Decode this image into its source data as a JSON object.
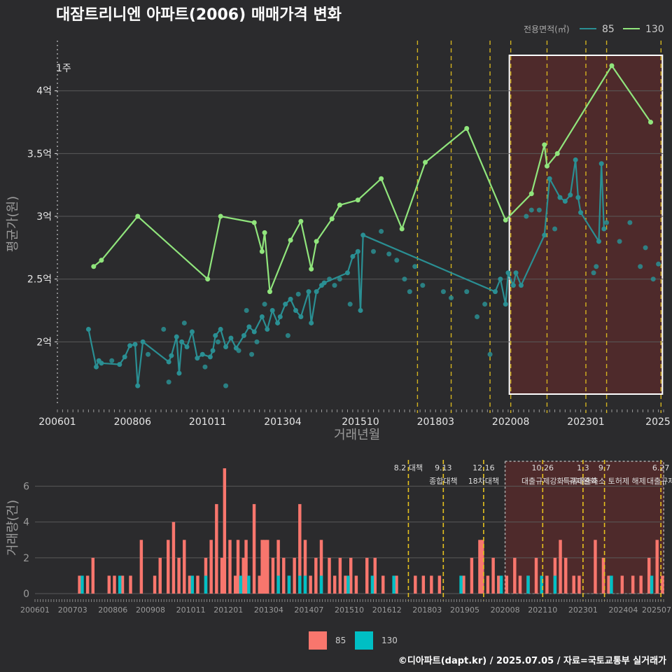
{
  "title": "대잠트리니엔 아파트(2006) 매매가격 변화",
  "source": "©디아파트(dapt.kr) / 2025.07.05 / 자료=국토교통부 실거래가",
  "colors": {
    "s85": "#2a8f93",
    "s130": "#90e57c",
    "bar85": "#f8766d",
    "bar130": "#00bfc4",
    "policy": "#e6c21e",
    "box": "#7b2a2a"
  },
  "chart_data": [
    {
      "type": "line",
      "xlabel": "거래년월",
      "ylabel": "평균가(원)",
      "x_ticks": [
        "200601",
        "200806",
        "201011",
        "201304",
        "201510",
        "201803",
        "202008",
        "202301",
        "2025"
      ],
      "y_ticks": [
        "2억",
        "2.5억",
        "3억",
        "3.5억",
        "4억"
      ],
      "ylim": [
        1.5,
        4.4
      ],
      "xlim": [
        "2006-01",
        "2025-07"
      ],
      "y_unit": "억",
      "legend": {
        "title": "전용면적(㎡)",
        "placement": "top-right",
        "entries": [
          "85",
          "130"
        ]
      },
      "annotation": "1주",
      "highlight_range": [
        "2020-08",
        "2025-06"
      ],
      "policy_lines": [
        "2017-08",
        "2018-09",
        "2019-12",
        "2020-08",
        "2021-10",
        "2023-01",
        "2023-09",
        "2025-06"
      ],
      "series": [
        {
          "name": "85",
          "points": [
            [
              "2007-01",
              2.1
            ],
            [
              "2007-04",
              1.8
            ],
            [
              "2007-05",
              1.85
            ],
            [
              "2007-06",
              1.83
            ],
            [
              "2008-01",
              1.82
            ],
            [
              "2008-03",
              1.88
            ],
            [
              "2008-05",
              1.97
            ],
            [
              "2008-07",
              1.98
            ],
            [
              "2008-08",
              1.65
            ],
            [
              "2008-10",
              2.0
            ],
            [
              "2009-08",
              1.84
            ],
            [
              "2009-09",
              1.89
            ],
            [
              "2009-11",
              2.04
            ],
            [
              "2009-12",
              1.75
            ],
            [
              "2010-01",
              2.0
            ],
            [
              "2010-03",
              1.96
            ],
            [
              "2010-05",
              2.08
            ],
            [
              "2010-07",
              1.87
            ],
            [
              "2010-09",
              1.9
            ],
            [
              "2010-12",
              1.88
            ],
            [
              "2011-01",
              1.93
            ],
            [
              "2011-02",
              2.05
            ],
            [
              "2011-04",
              2.1
            ],
            [
              "2011-06",
              1.96
            ],
            [
              "2011-08",
              2.03
            ],
            [
              "2011-10",
              1.95
            ],
            [
              "2012-01",
              2.05
            ],
            [
              "2012-03",
              2.12
            ],
            [
              "2012-05",
              2.08
            ],
            [
              "2012-08",
              2.2
            ],
            [
              "2012-10",
              2.1
            ],
            [
              "2012-12",
              2.25
            ],
            [
              "2013-02",
              2.15
            ],
            [
              "2013-03",
              2.2
            ],
            [
              "2013-05",
              2.3
            ],
            [
              "2013-07",
              2.34
            ],
            [
              "2013-09",
              2.25
            ],
            [
              "2013-11",
              2.2
            ],
            [
              "2014-02",
              2.4
            ],
            [
              "2014-03",
              2.15
            ],
            [
              "2014-05",
              2.4
            ],
            [
              "2014-07",
              2.45
            ],
            [
              "2014-08",
              2.47
            ],
            [
              "2015-05",
              2.55
            ],
            [
              "2015-07",
              2.68
            ],
            [
              "2015-09",
              2.72
            ],
            [
              "2015-10",
              2.25
            ],
            [
              "2015-11",
              2.85
            ],
            [
              "2020-02",
              2.4
            ],
            [
              "2020-04",
              2.5
            ],
            [
              "2020-06",
              2.3
            ],
            [
              "2020-07",
              2.55
            ],
            [
              "2020-09",
              2.45
            ],
            [
              "2020-10",
              2.55
            ],
            [
              "2020-12",
              2.45
            ],
            [
              "2021-09",
              2.85
            ],
            [
              "2021-11",
              3.3
            ],
            [
              "2022-03",
              3.15
            ],
            [
              "2022-05",
              3.12
            ],
            [
              "2022-07",
              3.17
            ],
            [
              "2022-09",
              3.45
            ],
            [
              "2022-10",
              3.15
            ],
            [
              "2022-11",
              3.03
            ],
            [
              "2023-06",
              2.8
            ],
            [
              "2023-07",
              3.42
            ],
            [
              "2023-08",
              2.9
            ]
          ],
          "scatter": [
            [
              "2007-10",
              1.85
            ],
            [
              "2008-12",
              1.9
            ],
            [
              "2009-06",
              2.1
            ],
            [
              "2009-08",
              1.68
            ],
            [
              "2010-02",
              2.15
            ],
            [
              "2010-10",
              1.8
            ],
            [
              "2011-03",
              2.0
            ],
            [
              "2011-06",
              1.65
            ],
            [
              "2011-11",
              1.93
            ],
            [
              "2012-02",
              2.25
            ],
            [
              "2012-04",
              1.9
            ],
            [
              "2012-06",
              2.0
            ],
            [
              "2012-09",
              2.3
            ],
            [
              "2013-06",
              2.05
            ],
            [
              "2013-10",
              2.38
            ],
            [
              "2014-10",
              2.5
            ],
            [
              "2014-12",
              2.45
            ],
            [
              "2015-02",
              2.5
            ],
            [
              "2015-06",
              2.3
            ],
            [
              "2016-03",
              2.72
            ],
            [
              "2016-06",
              2.88
            ],
            [
              "2016-09",
              2.7
            ],
            [
              "2016-12",
              2.65
            ],
            [
              "2017-03",
              2.5
            ],
            [
              "2017-05",
              2.4
            ],
            [
              "2017-07",
              2.6
            ],
            [
              "2017-10",
              2.45
            ],
            [
              "2018-06",
              2.4
            ],
            [
              "2018-09",
              2.35
            ],
            [
              "2019-03",
              2.4
            ],
            [
              "2019-07",
              2.2
            ],
            [
              "2019-10",
              2.3
            ],
            [
              "2019-12",
              1.9
            ],
            [
              "2021-02",
              3.0
            ],
            [
              "2021-04",
              3.05
            ],
            [
              "2021-07",
              3.05
            ],
            [
              "2022-01",
              2.9
            ],
            [
              "2023-04",
              2.55
            ],
            [
              "2023-05",
              2.6
            ],
            [
              "2023-09",
              2.95
            ],
            [
              "2024-02",
              2.8
            ],
            [
              "2024-06",
              2.95
            ],
            [
              "2024-10",
              2.6
            ],
            [
              "2024-12",
              2.75
            ],
            [
              "2025-03",
              2.5
            ],
            [
              "2025-05",
              2.62
            ]
          ]
        },
        {
          "name": "130",
          "points": [
            [
              "2007-03",
              2.6
            ],
            [
              "2007-06",
              2.65
            ],
            [
              "2008-08",
              3.0
            ],
            [
              "2010-11",
              2.5
            ],
            [
              "2011-04",
              3.0
            ],
            [
              "2012-05",
              2.95
            ],
            [
              "2012-08",
              2.72
            ],
            [
              "2012-09",
              2.87
            ],
            [
              "2012-11",
              2.4
            ],
            [
              "2013-07",
              2.81
            ],
            [
              "2013-11",
              2.96
            ],
            [
              "2014-03",
              2.58
            ],
            [
              "2014-05",
              2.8
            ],
            [
              "2014-11",
              2.98
            ],
            [
              "2015-02",
              3.09
            ],
            [
              "2015-09",
              3.13
            ],
            [
              "2016-06",
              3.3
            ],
            [
              "2017-02",
              2.9
            ],
            [
              "2017-11",
              3.43
            ],
            [
              "2019-03",
              3.7
            ],
            [
              "2020-06",
              2.97
            ],
            [
              "2021-04",
              3.18
            ],
            [
              "2021-09",
              3.57
            ],
            [
              "2021-10",
              3.4
            ],
            [
              "2022-02",
              3.5
            ],
            [
              "2023-11",
              4.2
            ],
            [
              "2025-02",
              3.75
            ]
          ]
        }
      ]
    },
    {
      "type": "bar",
      "ylabel": "거래량(건)",
      "ylim": [
        0,
        7
      ],
      "y_ticks": [
        "0",
        "2",
        "4",
        "6"
      ],
      "x_ticks": [
        "200601",
        "200703",
        "200806",
        "200908",
        "201011",
        "201201",
        "201304",
        "201407",
        "201510",
        "201612",
        "201803",
        "201905",
        "202008",
        "202110",
        "202301",
        "202404",
        "202507"
      ],
      "legend": {
        "placement": "bottom",
        "entries": [
          "85",
          "130"
        ]
      },
      "policy_labels": [
        {
          "date": "2017-08",
          "line1": "8.2 대책",
          "line2": ""
        },
        {
          "date": "2018-09",
          "line1": "9.13",
          "line2": "종합대책"
        },
        {
          "date": "2019-12",
          "line1": "12.16",
          "line2": "18차대책"
        },
        {
          "date": "2021-10",
          "line1": "10.26",
          "line2": "대출규제강화"
        },
        {
          "date": "2023-01",
          "line1": "1.3",
          "line2": "규제완화"
        },
        {
          "date": "2023-09",
          "line1": "9.7",
          "line2": "특례대출축소 토허제 해제"
        },
        {
          "date": "2025-06",
          "line1": "6.27",
          "line2": "대출규제"
        }
      ],
      "bars85": [
        [
          "2007-05",
          1
        ],
        [
          "2007-08",
          1
        ],
        [
          "2007-10",
          2
        ],
        [
          "2008-04",
          1
        ],
        [
          "2008-06",
          1
        ],
        [
          "2008-09",
          1
        ],
        [
          "2008-12",
          1
        ],
        [
          "2009-04",
          3
        ],
        [
          "2009-09",
          1
        ],
        [
          "2009-11",
          2
        ],
        [
          "2010-02",
          3
        ],
        [
          "2010-04",
          4
        ],
        [
          "2010-06",
          2
        ],
        [
          "2010-08",
          3
        ],
        [
          "2010-10",
          1
        ],
        [
          "2011-01",
          1
        ],
        [
          "2011-04",
          2
        ],
        [
          "2011-06",
          3
        ],
        [
          "2011-08",
          5
        ],
        [
          "2011-10",
          2
        ],
        [
          "2011-11",
          7
        ],
        [
          "2012-01",
          3
        ],
        [
          "2012-03",
          1
        ],
        [
          "2012-04",
          3
        ],
        [
          "2012-06",
          2
        ],
        [
          "2012-07",
          3
        ],
        [
          "2012-10",
          5
        ],
        [
          "2012-12",
          1
        ],
        [
          "2013-01",
          3
        ],
        [
          "2013-02",
          3
        ],
        [
          "2013-03",
          3
        ],
        [
          "2013-05",
          2
        ],
        [
          "2013-07",
          3
        ],
        [
          "2013-09",
          2
        ],
        [
          "2013-11",
          1
        ],
        [
          "2014-01",
          2
        ],
        [
          "2014-03",
          5
        ],
        [
          "2014-05",
          3
        ],
        [
          "2014-07",
          1
        ],
        [
          "2014-09",
          2
        ],
        [
          "2014-11",
          3
        ],
        [
          "2015-02",
          2
        ],
        [
          "2015-04",
          1
        ],
        [
          "2015-06",
          2
        ],
        [
          "2015-08",
          1
        ],
        [
          "2015-10",
          2
        ],
        [
          "2015-12",
          1
        ],
        [
          "2016-04",
          2
        ],
        [
          "2016-07",
          2
        ],
        [
          "2016-10",
          1
        ],
        [
          "2017-03",
          1
        ],
        [
          "2017-10",
          1
        ],
        [
          "2018-01",
          1
        ],
        [
          "2018-04",
          1
        ],
        [
          "2018-07",
          1
        ],
        [
          "2019-04",
          1
        ],
        [
          "2019-07",
          2
        ],
        [
          "2019-10",
          3
        ],
        [
          "2019-11",
          3
        ],
        [
          "2020-01",
          1
        ],
        [
          "2020-03",
          2
        ],
        [
          "2020-05",
          1
        ],
        [
          "2020-08",
          1
        ],
        [
          "2020-11",
          2
        ],
        [
          "2021-01",
          1
        ],
        [
          "2021-04",
          1
        ],
        [
          "2021-07",
          2
        ],
        [
          "2021-11",
          1
        ],
        [
          "2022-02",
          2
        ],
        [
          "2022-04",
          3
        ],
        [
          "2022-06",
          2
        ],
        [
          "2022-09",
          1
        ],
        [
          "2022-11",
          1
        ],
        [
          "2023-05",
          3
        ],
        [
          "2023-08",
          2
        ],
        [
          "2023-10",
          1
        ],
        [
          "2024-03",
          1
        ],
        [
          "2024-07",
          1
        ],
        [
          "2024-10",
          1
        ],
        [
          "2025-01",
          2
        ],
        [
          "2025-04",
          3
        ],
        [
          "2025-06",
          1
        ]
      ],
      "bars130": [
        [
          "2007-06",
          1
        ],
        [
          "2008-08",
          1
        ],
        [
          "2010-11",
          1
        ],
        [
          "2011-04",
          1
        ],
        [
          "2012-05",
          1
        ],
        [
          "2012-08",
          1
        ],
        [
          "2013-07",
          1
        ],
        [
          "2013-11",
          1
        ],
        [
          "2014-03",
          1
        ],
        [
          "2014-05",
          1
        ],
        [
          "2014-11",
          1
        ],
        [
          "2015-09",
          1
        ],
        [
          "2016-06",
          1
        ],
        [
          "2017-02",
          1
        ],
        [
          "2019-03",
          1
        ],
        [
          "2020-06",
          1
        ],
        [
          "2021-04",
          1
        ],
        [
          "2021-09",
          1
        ],
        [
          "2022-02",
          1
        ],
        [
          "2023-11",
          1
        ],
        [
          "2025-02",
          1
        ]
      ]
    }
  ]
}
